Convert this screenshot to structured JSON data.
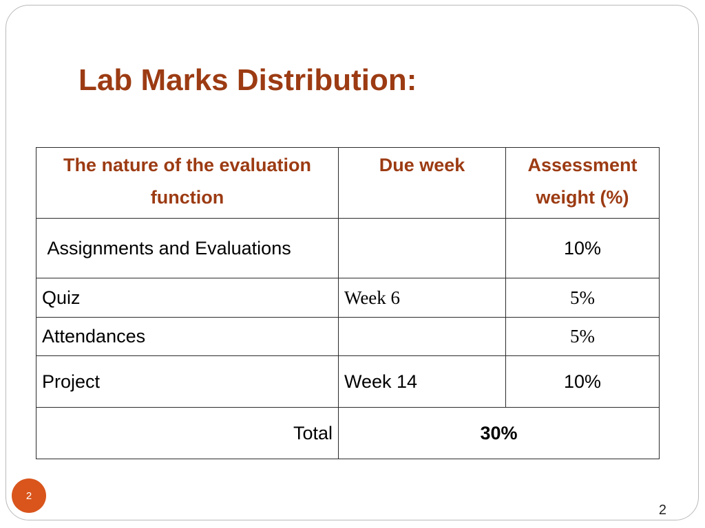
{
  "slide": {
    "title": "Lab Marks Distribution:",
    "badge_number": "2",
    "page_number": "2"
  },
  "table": {
    "headers": {
      "nature": "The nature of the evaluation function",
      "due_week": "Due week",
      "weight": "Assessment weight (%)"
    },
    "rows": [
      {
        "nature": " Assignments  and Evaluations",
        "due_week": "",
        "weight": "10%"
      },
      {
        "nature": "Quiz",
        "due_week": "Week 6",
        "weight": "5%"
      },
      {
        "nature": "Attendances",
        "due_week": "",
        "weight": "5%"
      },
      {
        "nature": "Project",
        "due_week": "Week 14",
        "weight": "10%"
      }
    ],
    "total": {
      "label": "Total",
      "value": "30%"
    }
  },
  "colors": {
    "title": "#9c3b13",
    "header_text": "#9c3b13",
    "badge": "#d9551c",
    "border": "#2a2a2a"
  }
}
